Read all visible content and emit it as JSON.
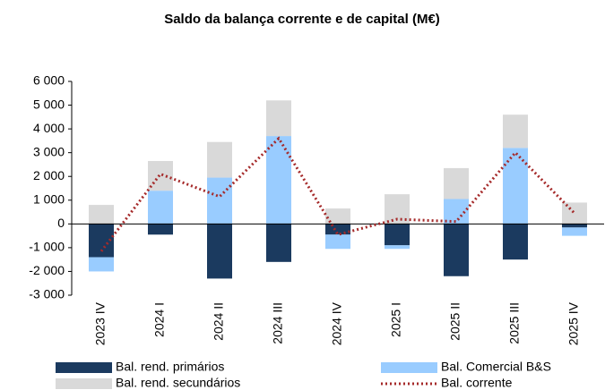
{
  "chart_data": {
    "type": "bar",
    "title": "Saldo da balança corrente e de capital (M€)",
    "categories": [
      "2023 IV",
      "2024 I",
      "2024 II",
      "2024 III",
      "2024 IV",
      "2025 I",
      "2025 II",
      "2025 III",
      "2025 IV"
    ],
    "series": [
      {
        "name": "Bal. rend. primários",
        "color": "#1b3a5f",
        "values": [
          -1400,
          -450,
          -2300,
          -1600,
          -450,
          -900,
          -2200,
          -1500,
          -150
        ]
      },
      {
        "name": "Bal. Comercial B&S",
        "color": "#99ccff",
        "values": [
          -600,
          1400,
          1950,
          3700,
          -600,
          -150,
          1050,
          3200,
          -350
        ]
      },
      {
        "name": "Bal. rend. secundários",
        "color": "#d9d9d9",
        "values": [
          800,
          1250,
          1500,
          1500,
          650,
          1250,
          1300,
          1400,
          900
        ]
      },
      {
        "name": "Bal. corrente",
        "type": "line",
        "color": "#a52a2a",
        "values": [
          -1150,
          2100,
          1150,
          3600,
          -450,
          200,
          100,
          3000,
          450
        ]
      }
    ],
    "ylim": [
      -3000,
      6000
    ],
    "yticks": [
      {
        "value": -3000,
        "label": "-3 000"
      },
      {
        "value": -2000,
        "label": "-2 000"
      },
      {
        "value": -1000,
        "label": "-1 000"
      },
      0,
      {
        "value": 1000,
        "label": "1 000"
      },
      {
        "value": 2000,
        "label": "2 000"
      },
      {
        "value": 3000,
        "label": "3 000"
      },
      {
        "value": 4000,
        "label": "4 000"
      },
      {
        "value": 5000,
        "label": "5 000"
      },
      {
        "value": 6000,
        "label": "6 000"
      }
    ],
    "grid": false
  }
}
